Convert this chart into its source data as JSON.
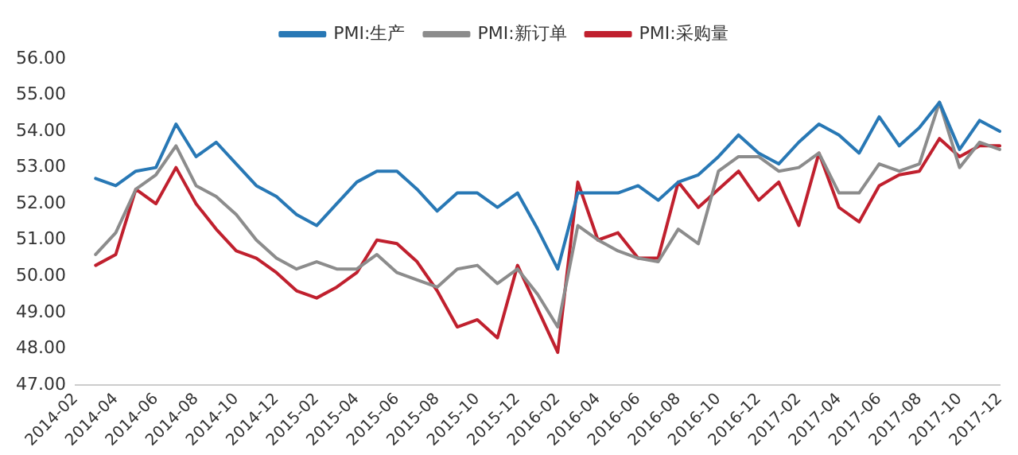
{
  "chart_data": {
    "type": "line",
    "categories": [
      "2014-02",
      null,
      "2014-04",
      null,
      "2014-06",
      null,
      "2014-08",
      null,
      "2014-10",
      null,
      "2014-12",
      null,
      "2015-02",
      null,
      "2015-04",
      null,
      "2015-06",
      null,
      "2015-08",
      null,
      "2015-10",
      null,
      "2015-12",
      null,
      "2016-02",
      null,
      "2016-04",
      null,
      "2016-06",
      null,
      "2016-08",
      null,
      "2016-10",
      null,
      "2016-12",
      null,
      "2017-02",
      null,
      "2017-04",
      null,
      "2017-06",
      null,
      "2017-08",
      null,
      "2017-10",
      null,
      "2017-12"
    ],
    "series": [
      {
        "name": "PMI:生产",
        "color": "#2878b5",
        "values": [
          null,
          52.7,
          52.5,
          52.9,
          53.0,
          54.2,
          53.3,
          53.7,
          53.1,
          52.5,
          52.2,
          51.7,
          51.4,
          52.0,
          52.6,
          52.9,
          52.9,
          52.4,
          51.8,
          52.3,
          52.3,
          51.9,
          52.3,
          51.3,
          50.2,
          52.3,
          52.3,
          52.3,
          52.5,
          52.1,
          52.6,
          52.8,
          53.3,
          53.9,
          53.4,
          53.1,
          53.7,
          54.2,
          53.9,
          53.4,
          54.4,
          53.6,
          54.1,
          54.8,
          53.5,
          54.3,
          54.0
        ]
      },
      {
        "name": "PMI:新订单",
        "color": "#8c8c8c",
        "values": [
          null,
          50.6,
          51.2,
          52.4,
          52.8,
          53.6,
          52.5,
          52.2,
          51.7,
          51.0,
          50.5,
          50.2,
          50.4,
          50.2,
          50.2,
          50.6,
          50.1,
          49.9,
          49.7,
          50.2,
          50.3,
          49.8,
          50.2,
          49.5,
          48.6,
          51.4,
          51.0,
          50.7,
          50.5,
          50.4,
          51.3,
          50.9,
          52.9,
          53.3,
          53.3,
          52.9,
          53.0,
          53.4,
          52.3,
          52.3,
          53.1,
          52.9,
          53.1,
          54.8,
          53.0,
          53.7,
          53.5
        ]
      },
      {
        "name": "PMI:采购量",
        "color": "#c0202e",
        "values": [
          null,
          50.3,
          50.6,
          52.4,
          52.0,
          53.0,
          52.0,
          51.3,
          50.7,
          50.5,
          50.1,
          49.6,
          49.4,
          49.7,
          50.1,
          51.0,
          50.9,
          50.4,
          49.6,
          48.6,
          48.8,
          48.3,
          50.3,
          49.1,
          47.9,
          52.6,
          51.0,
          51.2,
          50.5,
          50.5,
          52.6,
          51.9,
          52.4,
          52.9,
          52.1,
          52.6,
          51.4,
          53.4,
          51.9,
          51.5,
          52.5,
          52.8,
          52.9,
          53.8,
          53.3,
          53.6,
          53.6
        ]
      }
    ],
    "ylim": [
      47,
      56
    ],
    "yticks": [
      {
        "value": 47,
        "label": "47.00"
      },
      {
        "value": 48,
        "label": "48.00"
      },
      {
        "value": 49,
        "label": "49.00"
      },
      {
        "value": 50,
        "label": "50.00"
      },
      {
        "value": 51,
        "label": "51.00"
      },
      {
        "value": 52,
        "label": "52.00"
      },
      {
        "value": 53,
        "label": "53.00"
      },
      {
        "value": 54,
        "label": "54.00"
      },
      {
        "value": 55,
        "label": "55.00"
      },
      {
        "value": 56,
        "label": "56.00"
      }
    ],
    "legend": "top",
    "marker": "none",
    "line_style": "solid"
  }
}
